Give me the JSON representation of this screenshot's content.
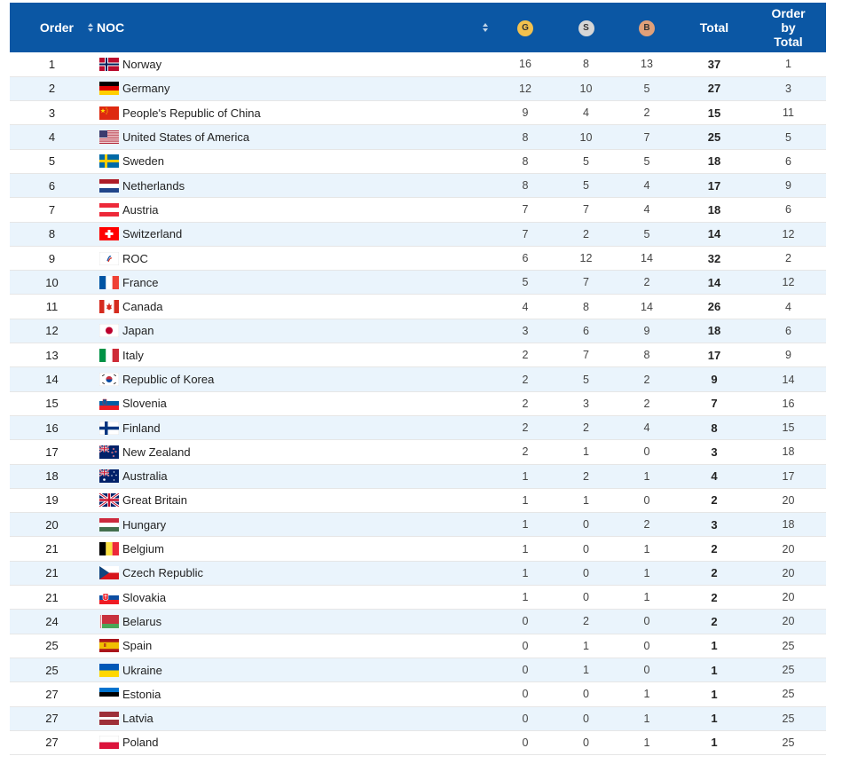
{
  "header": {
    "order": "Order",
    "noc": "NOC",
    "gold": "G",
    "silver": "S",
    "bronze": "B",
    "total": "Total",
    "order_by_total_1": "Order",
    "order_by_total_2": "by",
    "order_by_total_3": "Total"
  },
  "colors": {
    "header_bg": "#0b57a4",
    "row_alt": "#eaf4fc",
    "gold": "#f2c14e",
    "silver": "#d6d6d6",
    "bronze": "#e0a079"
  },
  "rows": [
    {
      "order": "1",
      "flag": "norway-flag-icon",
      "noc": "Norway",
      "g": "16",
      "s": "8",
      "b": "13",
      "total": "37",
      "obt": "1"
    },
    {
      "order": "2",
      "flag": "germany-flag-icon",
      "noc": "Germany",
      "g": "12",
      "s": "10",
      "b": "5",
      "total": "27",
      "obt": "3"
    },
    {
      "order": "3",
      "flag": "china-flag-icon",
      "noc": "People's Republic of China",
      "g": "9",
      "s": "4",
      "b": "2",
      "total": "15",
      "obt": "11"
    },
    {
      "order": "4",
      "flag": "usa-flag-icon",
      "noc": "United States of America",
      "g": "8",
      "s": "10",
      "b": "7",
      "total": "25",
      "obt": "5"
    },
    {
      "order": "5",
      "flag": "sweden-flag-icon",
      "noc": "Sweden",
      "g": "8",
      "s": "5",
      "b": "5",
      "total": "18",
      "obt": "6"
    },
    {
      "order": "6",
      "flag": "netherlands-flag-icon",
      "noc": "Netherlands",
      "g": "8",
      "s": "5",
      "b": "4",
      "total": "17",
      "obt": "9"
    },
    {
      "order": "7",
      "flag": "austria-flag-icon",
      "noc": "Austria",
      "g": "7",
      "s": "7",
      "b": "4",
      "total": "18",
      "obt": "6"
    },
    {
      "order": "8",
      "flag": "switzerland-flag-icon",
      "noc": "Switzerland",
      "g": "7",
      "s": "2",
      "b": "5",
      "total": "14",
      "obt": "12"
    },
    {
      "order": "9",
      "flag": "roc-flag-icon",
      "noc": "ROC",
      "g": "6",
      "s": "12",
      "b": "14",
      "total": "32",
      "obt": "2"
    },
    {
      "order": "10",
      "flag": "france-flag-icon",
      "noc": "France",
      "g": "5",
      "s": "7",
      "b": "2",
      "total": "14",
      "obt": "12"
    },
    {
      "order": "11",
      "flag": "canada-flag-icon",
      "noc": "Canada",
      "g": "4",
      "s": "8",
      "b": "14",
      "total": "26",
      "obt": "4"
    },
    {
      "order": "12",
      "flag": "japan-flag-icon",
      "noc": "Japan",
      "g": "3",
      "s": "6",
      "b": "9",
      "total": "18",
      "obt": "6"
    },
    {
      "order": "13",
      "flag": "italy-flag-icon",
      "noc": "Italy",
      "g": "2",
      "s": "7",
      "b": "8",
      "total": "17",
      "obt": "9"
    },
    {
      "order": "14",
      "flag": "korea-flag-icon",
      "noc": "Republic of Korea",
      "g": "2",
      "s": "5",
      "b": "2",
      "total": "9",
      "obt": "14"
    },
    {
      "order": "15",
      "flag": "slovenia-flag-icon",
      "noc": "Slovenia",
      "g": "2",
      "s": "3",
      "b": "2",
      "total": "7",
      "obt": "16"
    },
    {
      "order": "16",
      "flag": "finland-flag-icon",
      "noc": "Finland",
      "g": "2",
      "s": "2",
      "b": "4",
      "total": "8",
      "obt": "15"
    },
    {
      "order": "17",
      "flag": "new-zealand-flag-icon",
      "noc": "New Zealand",
      "g": "2",
      "s": "1",
      "b": "0",
      "total": "3",
      "obt": "18"
    },
    {
      "order": "18",
      "flag": "australia-flag-icon",
      "noc": "Australia",
      "g": "1",
      "s": "2",
      "b": "1",
      "total": "4",
      "obt": "17"
    },
    {
      "order": "19",
      "flag": "great-britain-flag-icon",
      "noc": "Great Britain",
      "g": "1",
      "s": "1",
      "b": "0",
      "total": "2",
      "obt": "20"
    },
    {
      "order": "20",
      "flag": "hungary-flag-icon",
      "noc": "Hungary",
      "g": "1",
      "s": "0",
      "b": "2",
      "total": "3",
      "obt": "18"
    },
    {
      "order": "21",
      "flag": "belgium-flag-icon",
      "noc": "Belgium",
      "g": "1",
      "s": "0",
      "b": "1",
      "total": "2",
      "obt": "20"
    },
    {
      "order": "21",
      "flag": "czech-flag-icon",
      "noc": "Czech Republic",
      "g": "1",
      "s": "0",
      "b": "1",
      "total": "2",
      "obt": "20"
    },
    {
      "order": "21",
      "flag": "slovakia-flag-icon",
      "noc": "Slovakia",
      "g": "1",
      "s": "0",
      "b": "1",
      "total": "2",
      "obt": "20"
    },
    {
      "order": "24",
      "flag": "belarus-flag-icon",
      "noc": "Belarus",
      "g": "0",
      "s": "2",
      "b": "0",
      "total": "2",
      "obt": "20"
    },
    {
      "order": "25",
      "flag": "spain-flag-icon",
      "noc": "Spain",
      "g": "0",
      "s": "1",
      "b": "0",
      "total": "1",
      "obt": "25"
    },
    {
      "order": "25",
      "flag": "ukraine-flag-icon",
      "noc": "Ukraine",
      "g": "0",
      "s": "1",
      "b": "0",
      "total": "1",
      "obt": "25"
    },
    {
      "order": "27",
      "flag": "estonia-flag-icon",
      "noc": "Estonia",
      "g": "0",
      "s": "0",
      "b": "1",
      "total": "1",
      "obt": "25"
    },
    {
      "order": "27",
      "flag": "latvia-flag-icon",
      "noc": "Latvia",
      "g": "0",
      "s": "0",
      "b": "1",
      "total": "1",
      "obt": "25"
    },
    {
      "order": "27",
      "flag": "poland-flag-icon",
      "noc": "Poland",
      "g": "0",
      "s": "0",
      "b": "1",
      "total": "1",
      "obt": "25"
    }
  ]
}
